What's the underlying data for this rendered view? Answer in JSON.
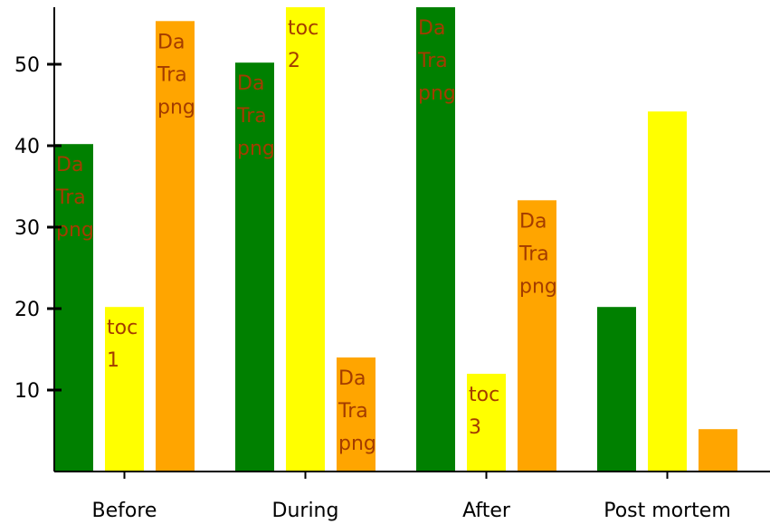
{
  "chart_data": {
    "type": "bar",
    "categories": [
      "Before",
      "During",
      "After",
      "Post mortem"
    ],
    "series": [
      {
        "color": "#008000",
        "values": [
          40.2,
          50.2,
          57.0,
          20.2
        ]
      },
      {
        "color": "#ffff00",
        "values": [
          20.2,
          57.0,
          12.0,
          44.2
        ]
      },
      {
        "color": "#ffa500",
        "values": [
          55.3,
          14.0,
          33.3,
          5.2
        ]
      }
    ],
    "bar_labels": [
      [
        [
          "Da",
          "Tra",
          "png"
        ],
        [
          "toc",
          "1"
        ],
        [
          "Da",
          "Tra",
          "png"
        ]
      ],
      [
        [
          "Da",
          "Tra",
          "png"
        ],
        [
          "toc",
          "2"
        ],
        [
          "Da",
          "Tra",
          "png"
        ]
      ],
      [
        [
          "Da",
          "Tra",
          "png"
        ],
        [
          "toc",
          "3"
        ],
        [
          "Da",
          "Tra",
          "png"
        ]
      ],
      [
        [],
        [],
        []
      ]
    ],
    "y_ticks": [
      10,
      20,
      30,
      40,
      50
    ],
    "ylim": [
      0,
      57
    ],
    "title": "",
    "xlabel": "",
    "ylabel": "",
    "grid": false,
    "legend": "none"
  }
}
